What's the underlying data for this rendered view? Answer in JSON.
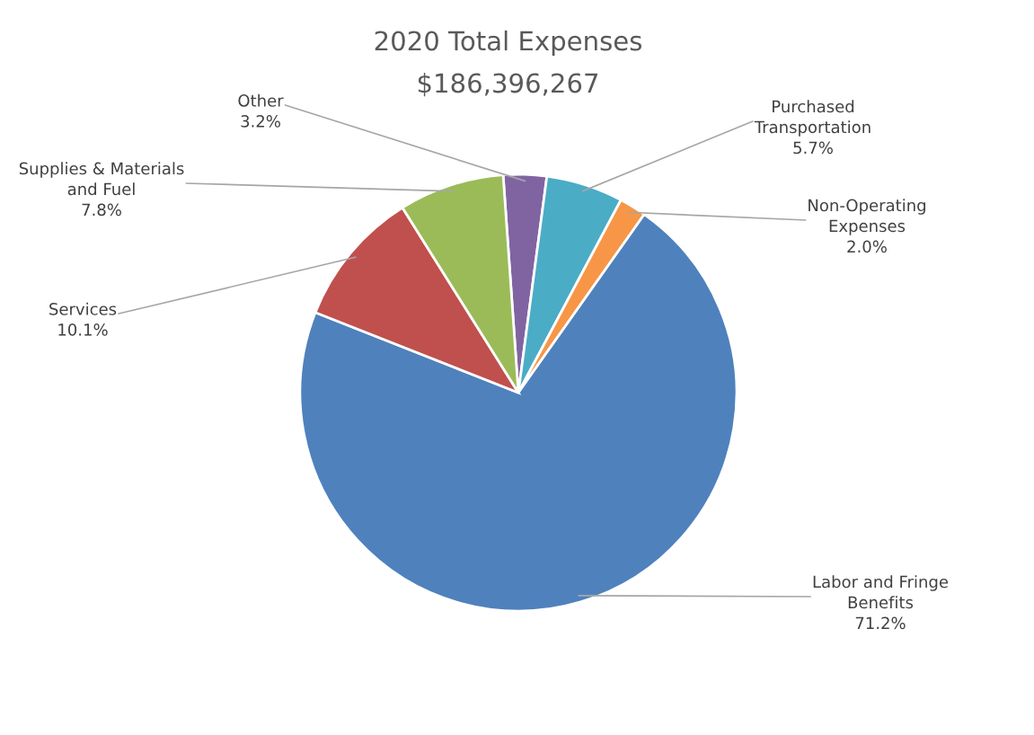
{
  "chart_data": {
    "type": "pie",
    "title": "2020 Total Expenses",
    "subtitle": "$186,396,267",
    "categories": [
      "Other",
      "Purchased\nTransportation",
      "Non-Operating\nExpenses",
      "Labor and Fringe\nBenefits",
      "Services",
      "Supplies & Materials\nand Fuel"
    ],
    "values": [
      3.2,
      5.7,
      2.0,
      71.2,
      10.1,
      7.8
    ],
    "value_labels": [
      "3.2%",
      "5.7%",
      "2.0%",
      "71.2%",
      "10.1%",
      "7.8%"
    ],
    "colors": [
      "#8064a2",
      "#4bacc6",
      "#f79646",
      "#4f81bd",
      "#c0504d",
      "#9bbb59"
    ]
  }
}
